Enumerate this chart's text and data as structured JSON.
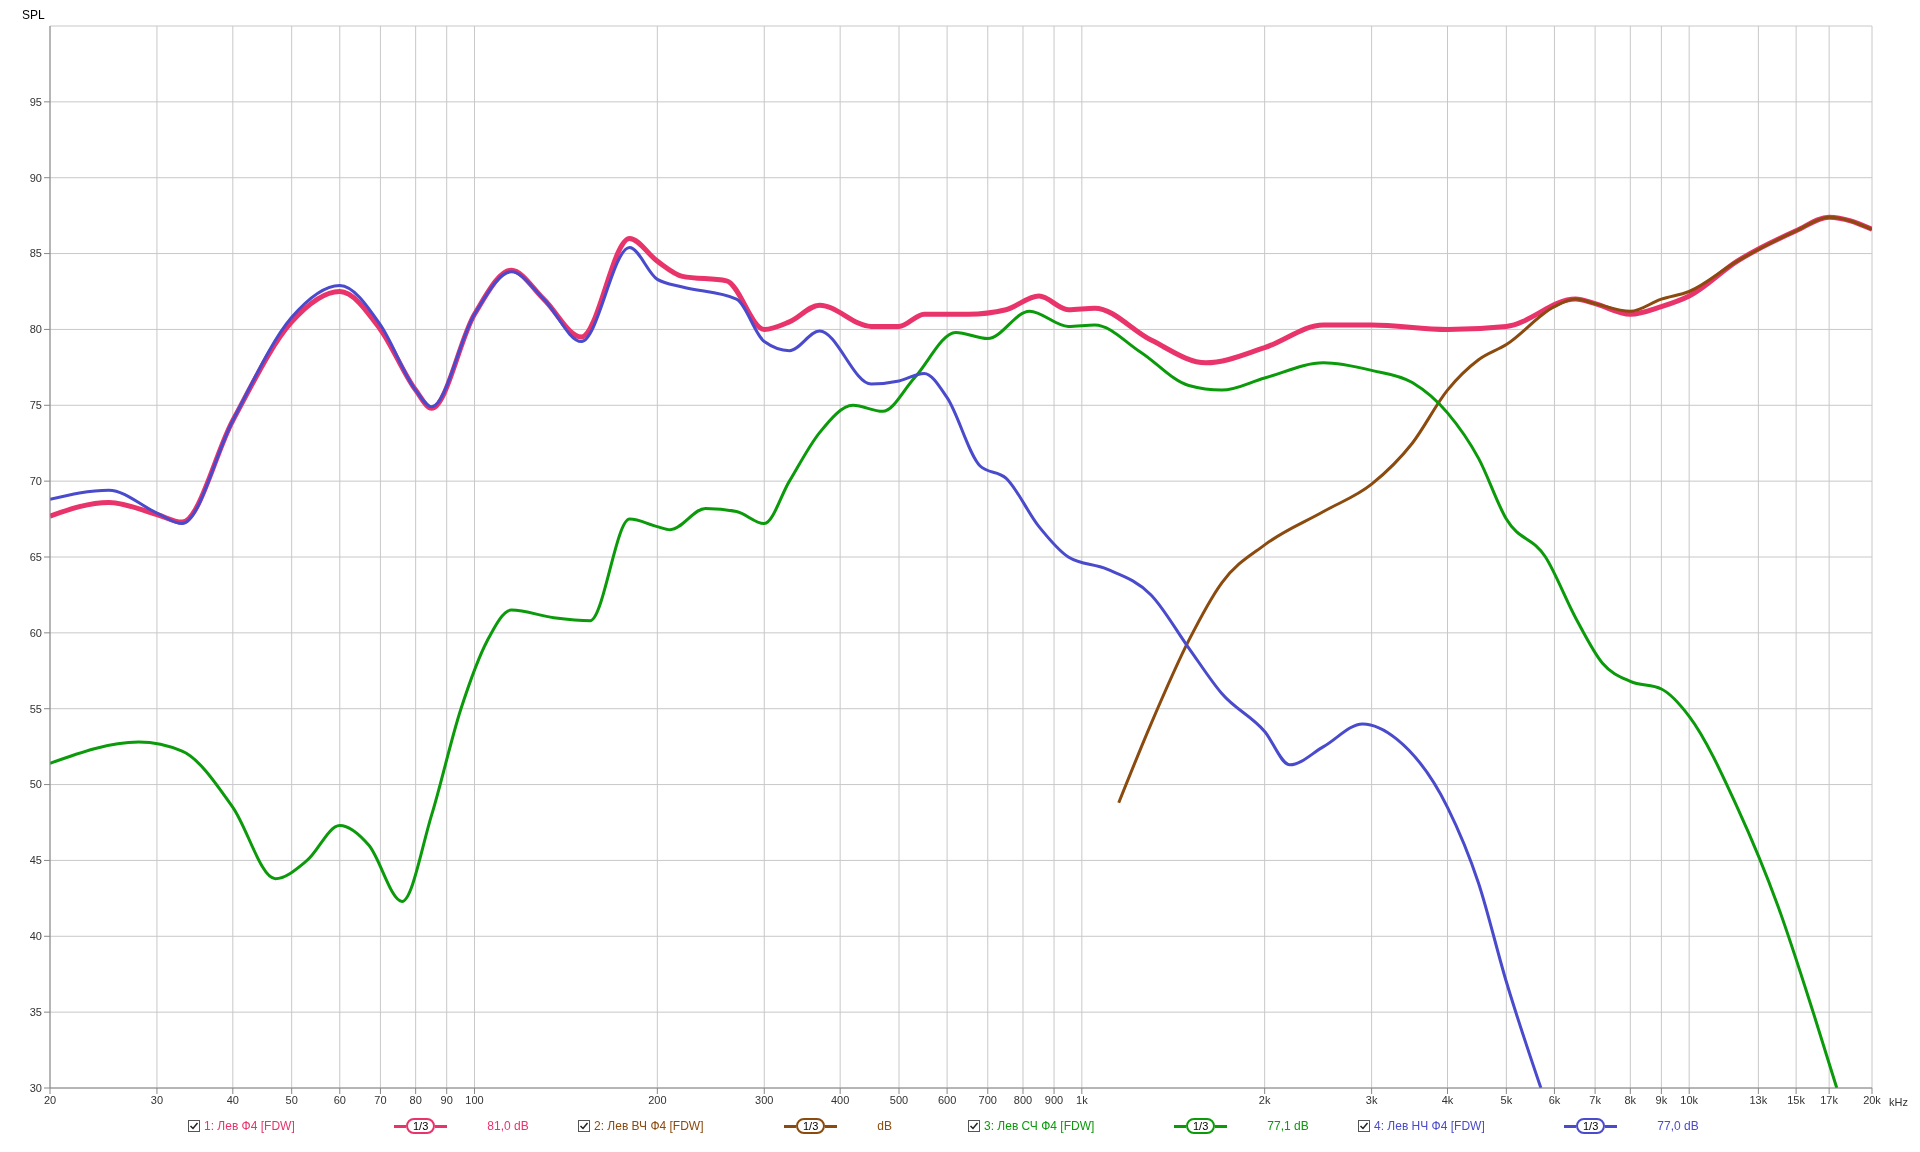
{
  "chart_data": {
    "type": "line",
    "ylabel": "SPL",
    "xlim": [
      20,
      20000
    ],
    "ylim": [
      30,
      100
    ],
    "log": "x",
    "grid": true,
    "legend": "bottom",
    "marker": "none",
    "line_style": "solid",
    "xticks": [
      20,
      30,
      40,
      50,
      60,
      70,
      80,
      90,
      100,
      200,
      300,
      400,
      500,
      600,
      700,
      800,
      900,
      {
        "value": 1000,
        "label": "1k"
      },
      {
        "value": 2000,
        "label": "2k"
      },
      {
        "value": 3000,
        "label": "3k"
      },
      {
        "value": 4000,
        "label": "4k"
      },
      {
        "value": 5000,
        "label": "5k"
      },
      {
        "value": 6000,
        "label": "6k"
      },
      {
        "value": 7000,
        "label": "7k"
      },
      {
        "value": 8000,
        "label": "8k"
      },
      {
        "value": 9000,
        "label": "9k"
      },
      {
        "value": 10000,
        "label": "10k"
      },
      {
        "value": 13000,
        "label": "13k"
      },
      {
        "value": 15000,
        "label": "15k"
      },
      {
        "value": 17000,
        "label": "17k"
      },
      {
        "value": 20000,
        "label": "20k"
      }
    ],
    "xlabel": "kHz",
    "yticks": [
      30,
      35,
      40,
      45,
      50,
      55,
      60,
      65,
      70,
      75,
      80,
      85,
      90,
      95
    ],
    "annotations": [
      "1/3",
      "81,0 dB",
      "1/3",
      "dB",
      "1/3",
      "77,1 dB",
      "1/3",
      "77,0 dB"
    ],
    "series": [
      {
        "name": "1: Лев Ф4 [FDW]",
        "color": "#e8336b",
        "x": [
          20,
          25,
          30,
          33,
          40,
          50,
          60,
          70,
          80,
          85,
          100,
          115,
          130,
          150,
          180,
          200,
          220,
          260,
          300,
          330,
          370,
          450,
          500,
          550,
          650,
          750,
          850,
          950,
          1050,
          1300,
          1600,
          2000,
          2500,
          3000,
          4000,
          5000,
          6500,
          7000,
          8000,
          9000,
          10000,
          12000,
          15000,
          17000,
          20000
        ],
        "values": [
          67.7,
          68.6,
          67.8,
          67.3,
          74,
          80.5,
          82.5,
          80,
          76,
          74.8,
          81,
          83.9,
          82,
          79.5,
          86,
          84.5,
          83.5,
          83.2,
          80,
          80.5,
          81.6,
          80.2,
          80.2,
          81,
          81,
          81.3,
          82.2,
          81.3,
          81.4,
          79.3,
          77.8,
          78.8,
          80.3,
          80.3,
          80,
          80.2,
          82,
          81.7,
          81,
          81.5,
          82.2,
          84.5,
          86.5,
          87.4,
          86.6
        ]
      },
      {
        "name": "2: Лев ВЧ Ф4 [FDW]",
        "color": "#8b4a0e",
        "x": [
          1150,
          1300,
          1500,
          1700,
          2000,
          2500,
          3000,
          3500,
          4000,
          4500,
          5000,
          6000,
          6500,
          7000,
          8000,
          9000,
          10000,
          12000,
          15000,
          17000,
          20000
        ],
        "values": [
          48.8,
          54,
          59.5,
          63.3,
          65.8,
          68,
          69.8,
          72.5,
          76,
          78,
          79,
          81.5,
          82,
          81.7,
          81.2,
          82,
          82.5,
          84.5,
          86.5,
          87.4,
          86.6
        ]
      },
      {
        "name": "3: Лев СЧ Ф4 [FDW]",
        "color": "#0a9a0a",
        "x": [
          20,
          28,
          33,
          40,
          47,
          53,
          60,
          67,
          76,
          85,
          95,
          105,
          115,
          135,
          155,
          180,
          200,
          210,
          240,
          270,
          300,
          330,
          370,
          420,
          470,
          530,
          620,
          700,
          820,
          950,
          1050,
          1250,
          1500,
          1700,
          2000,
          2500,
          3000,
          3500,
          4000,
          4500,
          5000,
          5800,
          6500,
          7200,
          8000,
          9000,
          10000,
          12000,
          14000,
          16000,
          17500
        ],
        "values": [
          51.4,
          52.8,
          52.2,
          48.5,
          43.8,
          45,
          47.3,
          46,
          42.3,
          48,
          55,
          59.5,
          61.5,
          61,
          60.8,
          67.5,
          67,
          66.8,
          68.2,
          68,
          67.2,
          70,
          73.2,
          75,
          74.6,
          76.8,
          79.8,
          79.4,
          81.2,
          80.2,
          80.3,
          78.5,
          76.3,
          76,
          76.8,
          77.8,
          77.3,
          76.5,
          74.5,
          71.5,
          67.5,
          65,
          61,
          58,
          56.8,
          56.3,
          54.5,
          48.5,
          42,
          35,
          30
        ]
      },
      {
        "name": "4: Лев НЧ Ф4 [FDW]",
        "color": "#4a4acc",
        "x": [
          20,
          25,
          30,
          33,
          40,
          50,
          60,
          70,
          80,
          85,
          100,
          115,
          130,
          150,
          180,
          200,
          220,
          270,
          300,
          330,
          370,
          450,
          500,
          550,
          600,
          680,
          750,
          850,
          950,
          1100,
          1300,
          1500,
          1700,
          2000,
          2200,
          2500,
          2900,
          3300,
          4000,
          4500,
          5000,
          5700
        ],
        "values": [
          68.8,
          69.4,
          67.9,
          67.2,
          74,
          80.8,
          82.9,
          80.3,
          76,
          74.9,
          81,
          83.8,
          82,
          79.2,
          85.4,
          83.3,
          82.8,
          82,
          79.2,
          78.6,
          79.9,
          76.4,
          76.6,
          77.1,
          75.5,
          71,
          70.2,
          67,
          65,
          64.2,
          62.5,
          59,
          56,
          53.5,
          51.3,
          52.5,
          54,
          53,
          48.5,
          43.5,
          37,
          30
        ]
      }
    ]
  }
}
